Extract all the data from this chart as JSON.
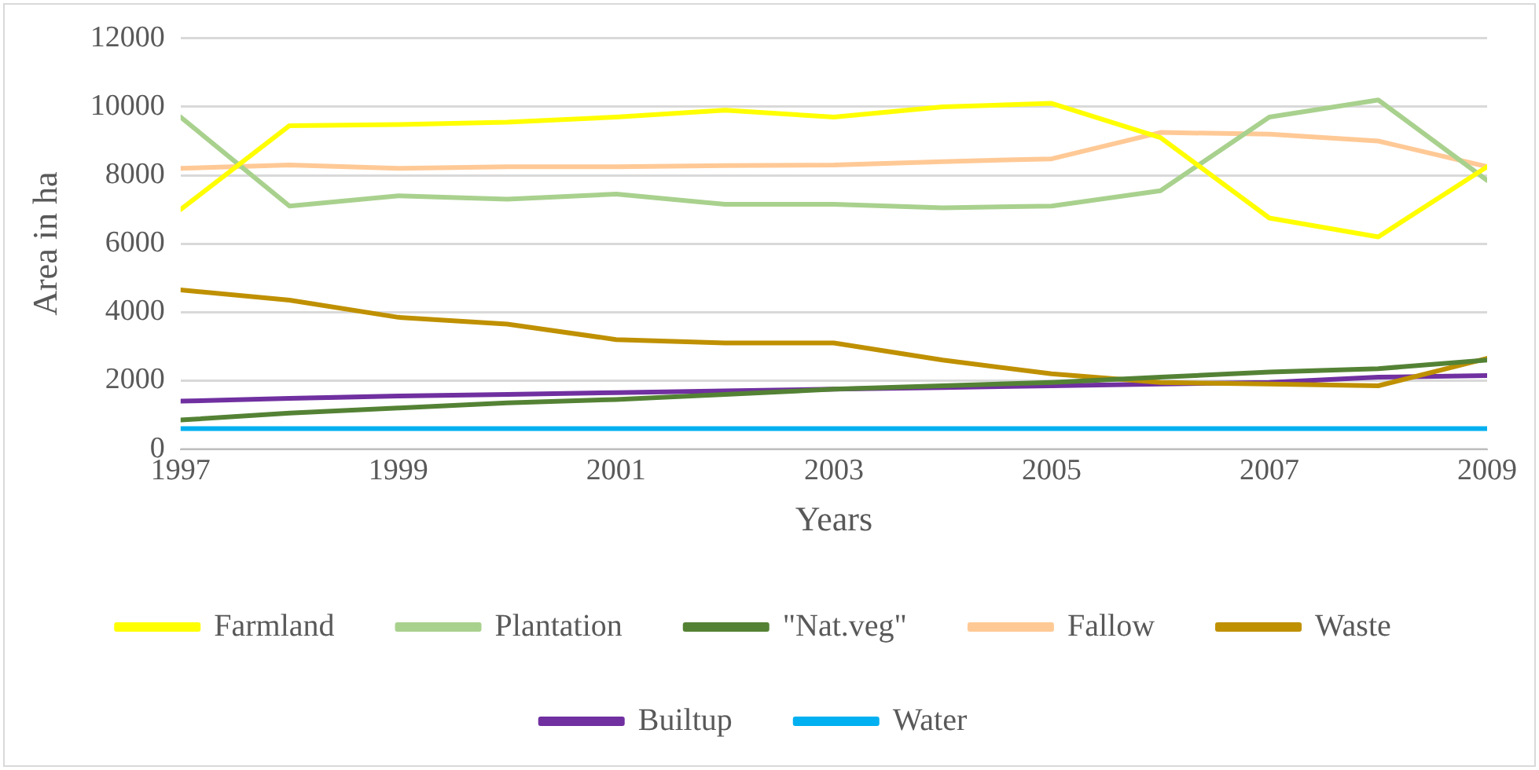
{
  "chart_data": {
    "type": "line",
    "xlabel": "Years",
    "ylabel": "Area in ha",
    "x": [
      1997,
      1998,
      1999,
      2000,
      2001,
      2002,
      2003,
      2004,
      2005,
      2006,
      2007,
      2008,
      2009
    ],
    "xlim": [
      1997,
      2009
    ],
    "xticks": [
      1997,
      1999,
      2001,
      2003,
      2005,
      2007,
      2009
    ],
    "ylim": [
      0,
      12000
    ],
    "yticks": [
      0,
      2000,
      4000,
      6000,
      8000,
      10000,
      12000
    ],
    "grid": "y",
    "legend": "bottom",
    "marker": "none",
    "line_style": "solid",
    "series": [
      {
        "name": "Farmland",
        "color": "#ffff00",
        "values": [
          7000,
          9450,
          9480,
          9550,
          9700,
          9900,
          9700,
          10000,
          10100,
          9100,
          6750,
          6200,
          8250
        ]
      },
      {
        "name": "Plantation",
        "color": "#a9d18e",
        "values": [
          9700,
          7100,
          7400,
          7300,
          7450,
          7150,
          7150,
          7050,
          7100,
          7550,
          9700,
          10200,
          7850
        ]
      },
      {
        "name": "\"Nat.veg\"",
        "color": "#548235",
        "values": [
          850,
          1050,
          1200,
          1350,
          1450,
          1600,
          1750,
          1850,
          1950,
          2100,
          2250,
          2350,
          2600
        ]
      },
      {
        "name": "Fallow",
        "color": "#ffc996",
        "values": [
          8200,
          8300,
          8200,
          8250,
          8250,
          8280,
          8300,
          8400,
          8480,
          9250,
          9200,
          9000,
          8250
        ]
      },
      {
        "name": "Waste",
        "color": "#bf9000",
        "values": [
          4650,
          4350,
          3850,
          3650,
          3200,
          3100,
          3100,
          2600,
          2200,
          1950,
          1900,
          1850,
          2650
        ]
      },
      {
        "name": "Builtup",
        "color": "#7030a0",
        "values": [
          1400,
          1480,
          1550,
          1600,
          1650,
          1700,
          1750,
          1800,
          1850,
          1900,
          1950,
          2100,
          2150
        ]
      },
      {
        "name": "Water",
        "color": "#00b0f0",
        "values": [
          600,
          600,
          600,
          600,
          600,
          600,
          600,
          600,
          600,
          600,
          600,
          600,
          600
        ]
      }
    ]
  }
}
